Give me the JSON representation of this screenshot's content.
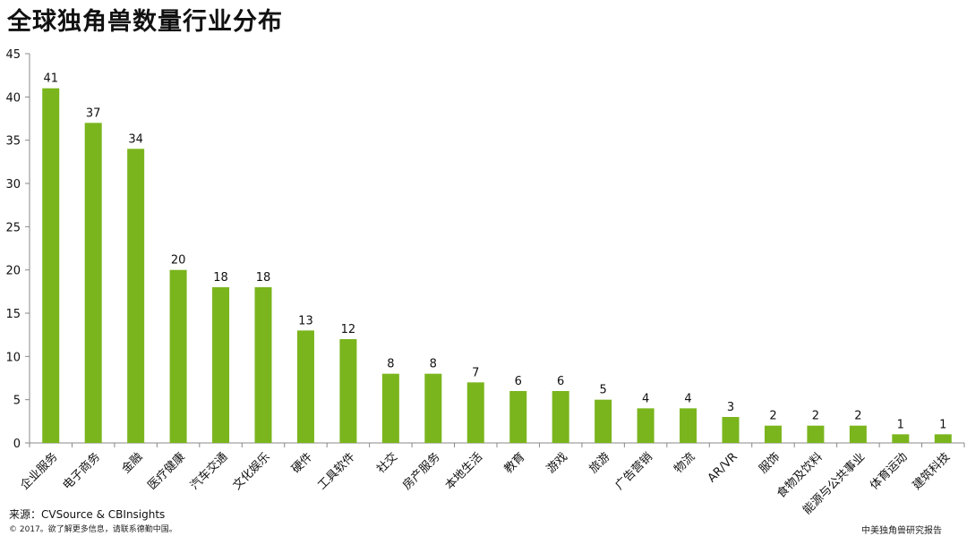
{
  "header": {
    "title": "全球独角兽数量行业分布"
  },
  "footer": {
    "source": "来源：CVSource & CBInsights",
    "copyright": "© 2017。欲了解更多信息，请联系德勤中国。",
    "report": "中美独角兽研究报告"
  },
  "chart_data": {
    "type": "bar",
    "title": "全球独角兽数量行业分布",
    "xlabel": "",
    "ylabel": "",
    "ylim": [
      0,
      45
    ],
    "yticks": [
      0,
      5,
      10,
      15,
      20,
      25,
      30,
      35,
      40,
      45
    ],
    "grid": false,
    "bar_color": "#7ab51d",
    "categories": [
      "企业服务",
      "电子商务",
      "金融",
      "医疗健康",
      "汽车交通",
      "文化娱乐",
      "硬件",
      "工具软件",
      "社交",
      "房产服务",
      "本地生活",
      "教育",
      "游戏",
      "旅游",
      "广告营销",
      "物流",
      "AR/VR",
      "服饰",
      "食物及饮料",
      "能源与公共事业",
      "体育运动",
      "建筑科技"
    ],
    "values": [
      41,
      37,
      34,
      20,
      18,
      18,
      13,
      12,
      8,
      8,
      7,
      6,
      6,
      5,
      4,
      4,
      3,
      2,
      2,
      2,
      1,
      1
    ]
  }
}
